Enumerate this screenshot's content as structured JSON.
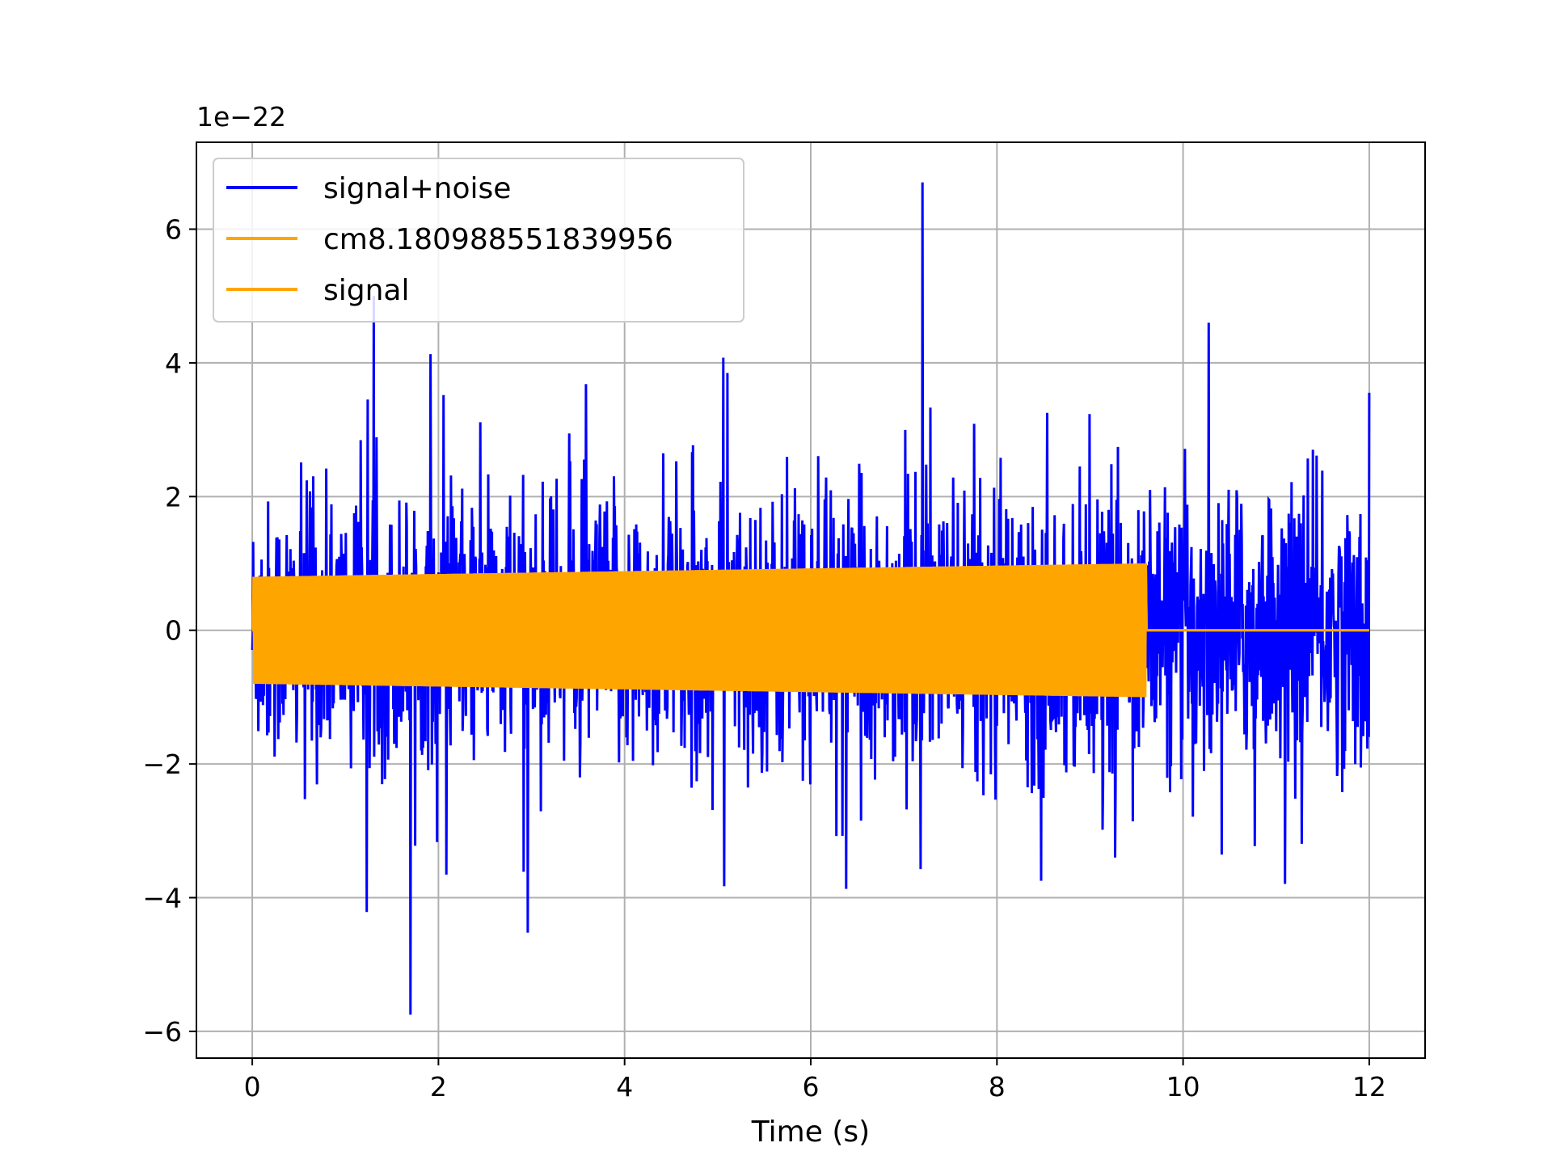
{
  "chart_data": {
    "type": "line",
    "title": "",
    "xlabel": "Time (s)",
    "ylabel": "",
    "y_offset_text": "1e−22",
    "y_scale_factor": 1e-22,
    "xlim": [
      -0.6,
      12.6
    ],
    "ylim": [
      -6.4,
      7.3
    ],
    "x_ticks": [
      0,
      2,
      4,
      6,
      8,
      10,
      12
    ],
    "x_tick_labels": [
      "0",
      "2",
      "4",
      "6",
      "8",
      "10",
      "12"
    ],
    "y_ticks": [
      -6,
      -4,
      -2,
      0,
      2,
      4,
      6
    ],
    "y_tick_labels": [
      "−6",
      "−4",
      "−2",
      "0",
      "2",
      "4",
      "6"
    ],
    "grid": true,
    "legend_position": "upper-left",
    "series": [
      {
        "name": "signal+noise",
        "color": "#0000ff",
        "x_range": [
          0,
          12
        ],
        "typical_amplitude": 1.9,
        "max": 6.7,
        "max_at": 7.2,
        "min": -5.75,
        "min_at": 1.7
      },
      {
        "name": "cm8.180988551839956",
        "color": "#ffa500",
        "x_range": [
          0,
          12
        ],
        "amplitude_start": 0.8,
        "amplitude_end": 1.0,
        "end_time": 9.6
      },
      {
        "name": "signal",
        "color": "#ffa500",
        "x_range": [
          0,
          12
        ],
        "amplitude_start": 0.8,
        "amplitude_end": 1.0,
        "end_time": 9.6
      }
    ]
  }
}
